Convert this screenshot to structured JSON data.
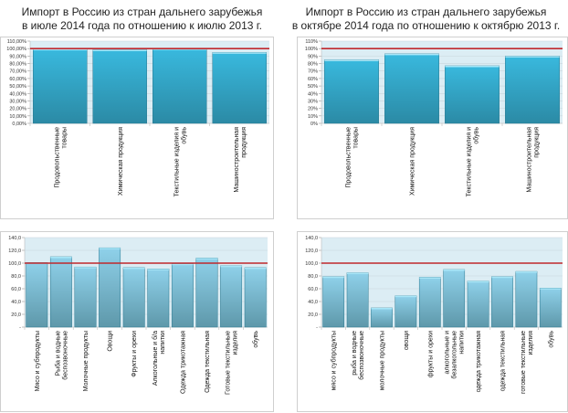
{
  "titles": [
    {
      "line1": "Импорт в Россию из стран дальнего зарубежья",
      "line2": "в июле 2014 года по отношению к июлю 2013 г."
    },
    {
      "line1": "Импорт в Россию из стран дальнего зарубежья",
      "line2": "в октябре 2014 года по отношению к октябрю 2013 г."
    }
  ],
  "colors": {
    "bar_top": "#39b9de",
    "bar_bottom": "#2b8aa5",
    "bar_bottom_light_top": "#8fd1ea",
    "bar_bottom_light_bottom": "#5e98aa",
    "plot_bg": "#dcedf4",
    "ref_line": "#c0282d",
    "grid": "#c8d6dc"
  },
  "chart_data": [
    {
      "type": "bar",
      "title": "Импорт в Россию из стран дальнего зарубежья в июле 2014 года по отношению к июлю 2013 г.",
      "categories": [
        [
          "Продовольственные",
          "товары"
        ],
        [
          "Химическая продукция"
        ],
        [
          "Текстильные изделия и",
          "обувь"
        ],
        [
          "Машиностроительная",
          "продукция"
        ]
      ],
      "values": [
        99.5,
        98.5,
        100,
        95
      ],
      "unit": "%",
      "ylim": [
        0,
        110
      ],
      "yticks": [
        "0,00%",
        "10,00%",
        "20,00%",
        "30,00%",
        "40,00%",
        "50,00%",
        "60,00%",
        "70,00%",
        "80,00%",
        "90,00%",
        "100,00%",
        "110,00%"
      ],
      "reference_line": 100,
      "grid": true
    },
    {
      "type": "bar",
      "title": "Импорт в Россию из стран дальнего зарубежья в октябре 2014 года по отношению к октябрю 2013 г.",
      "categories": [
        [
          "Продовольственные",
          "товары"
        ],
        [
          "Химическая продукция"
        ],
        [
          "Текстильные изделия и",
          "обувь"
        ],
        [
          "Машиностроительная",
          "продукция"
        ]
      ],
      "values": [
        85,
        93,
        77,
        90
      ],
      "unit": "%",
      "ylim": [
        0,
        110
      ],
      "yticks": [
        "0%",
        "10%",
        "20%",
        "30%",
        "40%",
        "50%",
        "60%",
        "70%",
        "80%",
        "90%",
        "100%",
        "110%"
      ],
      "reference_line": 100,
      "grid": true
    },
    {
      "type": "bar",
      "title": "",
      "categories": [
        [
          "Мясо и субпродукты"
        ],
        [
          "Рыба и водные",
          "беспозвоночные"
        ],
        [
          "Молочные продукты"
        ],
        [
          "Овощи"
        ],
        [
          "Фрукты и орехи"
        ],
        [
          "Алкогольные и б/а",
          "напитки"
        ],
        [
          "Одежда трикотажная"
        ],
        [
          "Одежда текстильная"
        ],
        [
          "Готовые текстильные",
          "изделия"
        ],
        [
          "обувь"
        ]
      ],
      "values": [
        101,
        110,
        94,
        124,
        93,
        91,
        99,
        108,
        96,
        93
      ],
      "ylim": [
        0,
        140
      ],
      "yticks": [
        "-",
        "20,0",
        "40,0",
        "60,0",
        "80,0",
        "100,0",
        "120,0",
        "140,0"
      ],
      "reference_line": 100,
      "grid": true
    },
    {
      "type": "bar",
      "title": "",
      "categories": [
        [
          "мясо и субпродукты"
        ],
        [
          "рыба и водные",
          "беспозвоночные"
        ],
        [
          "молочные продукты"
        ],
        [
          "овощи"
        ],
        [
          "фрукты и орехи"
        ],
        [
          "алкогольные и",
          "безалкогольные",
          "напитки"
        ],
        [
          "одежда трикотажная"
        ],
        [
          "одежда текстильная"
        ],
        [
          "готовые текстильные",
          "изделия"
        ],
        [
          "обувь"
        ]
      ],
      "values": [
        79,
        85,
        30,
        49,
        78,
        90,
        72,
        79,
        87,
        61
      ],
      "ylim": [
        0,
        140
      ],
      "yticks": [
        "-",
        "20,0",
        "40,0",
        "60,0",
        "80,0",
        "100,0",
        "120,0",
        "140,0"
      ],
      "reference_line": 100,
      "grid": true
    }
  ]
}
